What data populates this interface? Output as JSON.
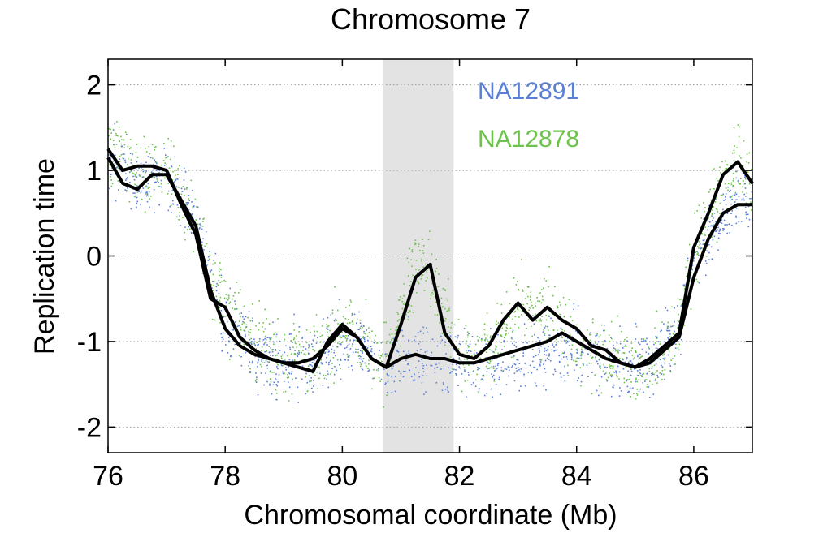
{
  "chart_data": {
    "type": "scatter",
    "title": "Chromosome 7",
    "xlabel": "Chromosomal coordinate (Mb)",
    "ylabel": "Replication time",
    "xlim": [
      76,
      87
    ],
    "ylim": [
      -2.3,
      2.3
    ],
    "x_ticks": [
      "76",
      "78",
      "80",
      "82",
      "84",
      "86"
    ],
    "y_ticks": [
      "2",
      "1",
      "0",
      "-1",
      "-2"
    ],
    "grid": "dotted horizontal at y ticks",
    "legend_placement": "top-center inside plot",
    "highlight_region": {
      "x_start": 80.7,
      "x_end": 81.9,
      "color": "#e3e3e3"
    },
    "colors": {
      "NA12891": "#5b7fd6",
      "NA12878": "#6cc24a",
      "smooth": "#000000"
    },
    "series": [
      {
        "name": "NA12891",
        "kind": "points",
        "trend_x": [
          76,
          76.5,
          77,
          77.5,
          77.8,
          78,
          78.5,
          79,
          79.5,
          80,
          80.3,
          80.7,
          81,
          81.3,
          81.7,
          82,
          82.5,
          83,
          83.5,
          84,
          84.5,
          85,
          85.3,
          85.7,
          86,
          86.3,
          86.7,
          87
        ],
        "trend_y": [
          1.2,
          0.8,
          1.0,
          0.4,
          -0.4,
          -0.8,
          -1.1,
          -1.25,
          -1.2,
          -1.05,
          -0.95,
          -1.3,
          -1.2,
          -1.15,
          -1.2,
          -1.25,
          -1.25,
          -1.2,
          -1.1,
          -1.1,
          -1.2,
          -1.3,
          -1.2,
          -0.9,
          0.0,
          0.3,
          0.7,
          0.6
        ],
        "noise": 0.38
      },
      {
        "name": "NA12878",
        "kind": "points",
        "trend_x": [
          76,
          76.5,
          77,
          77.5,
          77.8,
          78,
          78.5,
          79,
          79.5,
          80,
          80.3,
          80.7,
          81,
          81.3,
          81.7,
          82,
          82.5,
          83,
          83.5,
          84,
          84.5,
          85,
          85.3,
          85.7,
          86,
          86.3,
          86.7,
          87
        ],
        "trend_y": [
          1.3,
          1.0,
          1.0,
          0.3,
          -0.4,
          -0.6,
          -1.0,
          -1.25,
          -1.2,
          -0.8,
          -0.95,
          -1.3,
          -0.7,
          -0.05,
          -0.6,
          -1.15,
          -1.1,
          -0.6,
          -0.7,
          -1.0,
          -1.15,
          -1.25,
          -1.2,
          -0.9,
          0.1,
          0.6,
          1.1,
          0.8
        ],
        "noise": 0.42
      }
    ],
    "smooth_lines": [
      {
        "x": [
          76,
          76.25,
          76.5,
          76.75,
          77,
          77.25,
          77.5,
          77.75,
          78,
          78.25,
          78.5,
          78.75,
          79,
          79.25,
          79.5,
          79.75,
          80,
          80.25,
          80.5,
          80.75,
          81,
          81.25,
          81.5,
          81.75,
          82,
          82.25,
          82.5,
          82.75,
          83,
          83.25,
          83.5,
          83.75,
          84,
          84.25,
          84.5,
          84.75,
          85,
          85.25,
          85.5,
          85.75,
          86,
          86.25,
          86.5,
          86.75,
          87
        ],
        "y": [
          1.15,
          0.85,
          0.78,
          0.95,
          0.95,
          0.65,
          0.35,
          -0.4,
          -0.85,
          -1.05,
          -1.15,
          -1.2,
          -1.25,
          -1.25,
          -1.2,
          -1.05,
          -0.85,
          -0.95,
          -1.2,
          -1.3,
          -1.2,
          -1.15,
          -1.2,
          -1.2,
          -1.25,
          -1.25,
          -1.2,
          -1.15,
          -1.1,
          -1.05,
          -1.0,
          -0.9,
          -1.0,
          -1.1,
          -1.2,
          -1.25,
          -1.3,
          -1.25,
          -1.1,
          -0.95,
          -0.25,
          0.2,
          0.5,
          0.6,
          0.6
        ]
      },
      {
        "x": [
          76,
          76.25,
          76.5,
          76.75,
          77,
          77.25,
          77.5,
          77.75,
          78,
          78.25,
          78.5,
          78.75,
          79,
          79.25,
          79.5,
          79.75,
          80,
          80.25,
          80.5,
          80.75,
          81,
          81.25,
          81.5,
          81.75,
          82,
          82.25,
          82.5,
          82.75,
          83,
          83.25,
          83.5,
          83.75,
          84,
          84.25,
          84.5,
          84.75,
          85,
          85.25,
          85.5,
          85.75,
          86,
          86.25,
          86.5,
          86.75,
          87
        ],
        "y": [
          1.25,
          1.0,
          1.05,
          1.05,
          1.0,
          0.6,
          0.25,
          -0.5,
          -0.6,
          -0.95,
          -1.1,
          -1.2,
          -1.25,
          -1.3,
          -1.35,
          -1.0,
          -0.8,
          -0.95,
          -1.2,
          -1.3,
          -0.8,
          -0.25,
          -0.1,
          -0.9,
          -1.15,
          -1.2,
          -1.05,
          -0.75,
          -0.55,
          -0.75,
          -0.6,
          -0.75,
          -0.85,
          -1.05,
          -1.1,
          -1.25,
          -1.3,
          -1.2,
          -1.05,
          -0.9,
          0.1,
          0.5,
          0.95,
          1.1,
          0.85
        ]
      }
    ]
  }
}
